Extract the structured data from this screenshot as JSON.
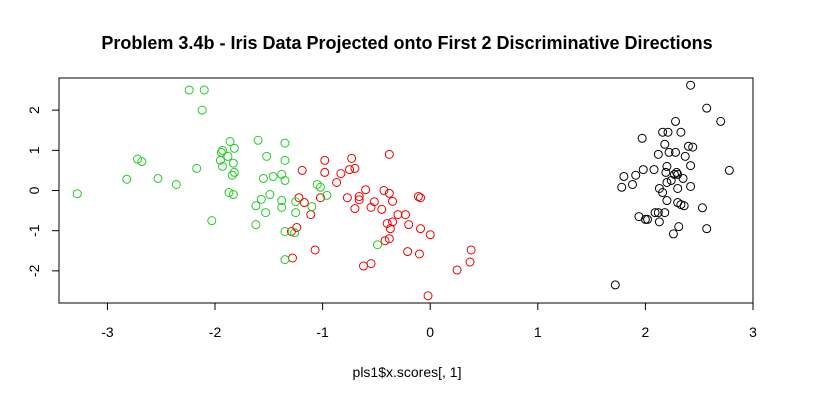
{
  "chart_data": {
    "type": "scatter",
    "title": "Problem 3.4b - Iris Data Projected onto First 2 Discriminative Directions",
    "xlabel": "pls1$x.scores[, 1]",
    "ylabel": "",
    "xlim": [
      -3.45,
      3.0
    ],
    "ylim": [
      -2.8,
      2.8
    ],
    "x_ticks": [
      -3,
      -2,
      -1,
      0,
      1,
      2,
      3
    ],
    "y_ticks": [
      -2,
      -1,
      0,
      1,
      2
    ],
    "x_tick_labels": [
      "-3",
      "-2",
      "-1",
      "0",
      "1",
      "2",
      "3"
    ],
    "y_tick_labels": [
      "-2",
      "-1",
      "0",
      "1",
      "2"
    ],
    "grid": false,
    "marker": "open-circle",
    "series": [
      {
        "color": "#000000",
        "points": [
          [
            2.42,
            2.62
          ],
          [
            2.57,
            2.05
          ],
          [
            2.7,
            1.72
          ],
          [
            2.21,
            1.45
          ],
          [
            2.33,
            1.45
          ],
          [
            2.28,
            1.72
          ],
          [
            1.97,
            1.3
          ],
          [
            2.16,
            1.45
          ],
          [
            2.4,
            1.1
          ],
          [
            2.44,
            1.08
          ],
          [
            2.18,
            1.15
          ],
          [
            2.22,
            0.95
          ],
          [
            2.28,
            0.95
          ],
          [
            2.12,
            0.9
          ],
          [
            2.37,
            0.85
          ],
          [
            2.78,
            0.5
          ],
          [
            2.42,
            0.62
          ],
          [
            1.98,
            0.52
          ],
          [
            2.08,
            0.52
          ],
          [
            1.8,
            0.35
          ],
          [
            1.91,
            0.38
          ],
          [
            2.2,
            0.6
          ],
          [
            2.29,
            0.45
          ],
          [
            2.19,
            0.45
          ],
          [
            2.27,
            0.4
          ],
          [
            2.3,
            0.4
          ],
          [
            2.35,
            0.3
          ],
          [
            2.24,
            0.25
          ],
          [
            2.2,
            0.2
          ],
          [
            1.88,
            0.15
          ],
          [
            1.78,
            0.08
          ],
          [
            2.42,
            0.1
          ],
          [
            2.13,
            0.05
          ],
          [
            2.3,
            0.05
          ],
          [
            2.16,
            -0.05
          ],
          [
            2.2,
            -0.25
          ],
          [
            2.3,
            -0.3
          ],
          [
            2.33,
            -0.35
          ],
          [
            2.36,
            -0.38
          ],
          [
            2.53,
            -0.43
          ],
          [
            2.18,
            -0.55
          ],
          [
            2.09,
            -0.55
          ],
          [
            2.12,
            -0.55
          ],
          [
            1.94,
            -0.65
          ],
          [
            2.02,
            -0.72
          ],
          [
            2.0,
            -0.72
          ],
          [
            2.13,
            -0.78
          ],
          [
            2.31,
            -0.9
          ],
          [
            2.57,
            -0.95
          ],
          [
            2.26,
            -1.08
          ],
          [
            1.72,
            -2.35
          ]
        ]
      },
      {
        "color": "#ee0000",
        "points": [
          [
            -0.98,
            0.75
          ],
          [
            -0.73,
            0.8
          ],
          [
            -0.38,
            0.9
          ],
          [
            -0.7,
            0.55
          ],
          [
            -0.75,
            0.52
          ],
          [
            -1.19,
            0.5
          ],
          [
            -0.98,
            0.45
          ],
          [
            -0.83,
            0.42
          ],
          [
            -0.87,
            0.2
          ],
          [
            -0.6,
            0.02
          ],
          [
            -0.43,
            0.0
          ],
          [
            -0.38,
            -0.07
          ],
          [
            -0.66,
            -0.15
          ],
          [
            -1.22,
            -0.18
          ],
          [
            -1.02,
            -0.18
          ],
          [
            -0.77,
            -0.18
          ],
          [
            -0.66,
            -0.23
          ],
          [
            -0.35,
            -0.27
          ],
          [
            -1.17,
            -0.3
          ],
          [
            -0.52,
            -0.28
          ],
          [
            -0.11,
            -0.15
          ],
          [
            -0.09,
            -0.18
          ],
          [
            -0.55,
            -0.42
          ],
          [
            -0.7,
            -0.45
          ],
          [
            -0.45,
            -0.47
          ],
          [
            -1.11,
            -0.6
          ],
          [
            -0.23,
            -0.6
          ],
          [
            -0.3,
            -0.6
          ],
          [
            -0.35,
            -0.78
          ],
          [
            -0.4,
            -0.82
          ],
          [
            -0.2,
            -0.85
          ],
          [
            -1.24,
            -0.92
          ],
          [
            -1.29,
            -1.02
          ],
          [
            -0.37,
            -0.95
          ],
          [
            -0.09,
            -0.95
          ],
          [
            0.0,
            -1.1
          ],
          [
            -0.38,
            -1.2
          ],
          [
            -0.42,
            -1.25
          ],
          [
            -1.07,
            -1.48
          ],
          [
            -0.21,
            -1.52
          ],
          [
            -0.1,
            -1.58
          ],
          [
            0.38,
            -1.48
          ],
          [
            -1.28,
            -1.68
          ],
          [
            0.37,
            -1.78
          ],
          [
            -0.55,
            -1.82
          ],
          [
            -0.62,
            -1.88
          ],
          [
            0.25,
            -1.98
          ],
          [
            -0.02,
            -2.62
          ]
        ]
      },
      {
        "color": "#22cc22",
        "points": [
          [
            -2.24,
            2.5
          ],
          [
            -2.1,
            2.5
          ],
          [
            -2.12,
            2.0
          ],
          [
            -1.86,
            1.22
          ],
          [
            -1.6,
            1.25
          ],
          [
            -1.35,
            1.18
          ],
          [
            -1.93,
            1.0
          ],
          [
            -1.94,
            0.95
          ],
          [
            -1.82,
            1.05
          ],
          [
            -1.88,
            0.85
          ],
          [
            -1.95,
            0.75
          ],
          [
            -1.83,
            0.68
          ],
          [
            -1.52,
            0.85
          ],
          [
            -1.35,
            0.75
          ],
          [
            -2.72,
            0.78
          ],
          [
            -2.68,
            0.72
          ],
          [
            -2.17,
            0.55
          ],
          [
            -2.53,
            0.3
          ],
          [
            -1.82,
            0.45
          ],
          [
            -1.84,
            0.38
          ],
          [
            -1.46,
            0.35
          ],
          [
            -1.38,
            0.4
          ],
          [
            -1.55,
            0.3
          ],
          [
            -1.35,
            0.25
          ],
          [
            -2.36,
            0.15
          ],
          [
            -2.82,
            0.28
          ],
          [
            -1.93,
            0.6
          ],
          [
            -1.05,
            0.15
          ],
          [
            -1.02,
            0.08
          ],
          [
            -3.28,
            -0.08
          ],
          [
            -1.87,
            -0.05
          ],
          [
            -1.83,
            -0.1
          ],
          [
            -1.49,
            -0.1
          ],
          [
            -1.57,
            -0.22
          ],
          [
            -1.62,
            -0.38
          ],
          [
            -1.38,
            -0.25
          ],
          [
            -1.25,
            -0.28
          ],
          [
            -1.38,
            -0.42
          ],
          [
            -1.1,
            -0.4
          ],
          [
            -1.25,
            -0.55
          ],
          [
            -1.53,
            -0.55
          ],
          [
            -2.03,
            -0.75
          ],
          [
            -1.62,
            -0.85
          ],
          [
            -1.35,
            -1.02
          ],
          [
            -1.26,
            -1.05
          ],
          [
            -1.35,
            -1.72
          ],
          [
            -0.49,
            -1.35
          ],
          [
            -0.96,
            -0.12
          ]
        ]
      }
    ]
  }
}
